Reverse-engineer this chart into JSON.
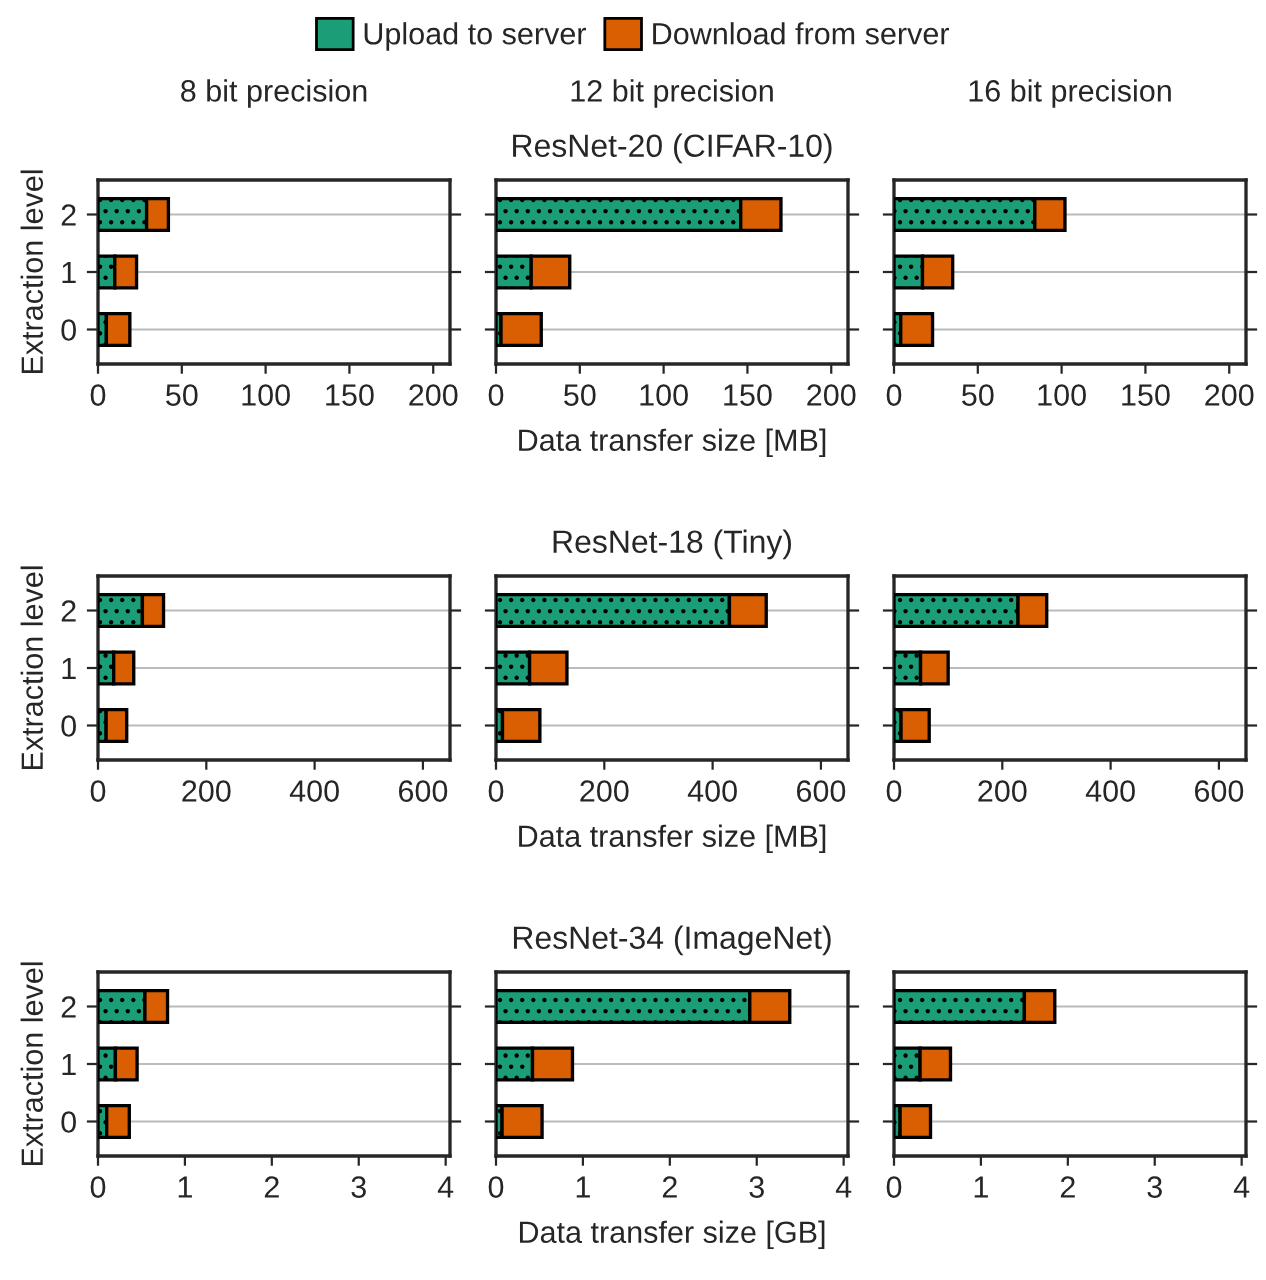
{
  "chart_data": [
    {
      "type": "bar",
      "orientation": "horizontal",
      "stacked": true,
      "subtitle": "8 bit precision",
      "ylabel": "Extraction level",
      "categories": [
        "2",
        "1",
        "0"
      ],
      "xlim": [
        0,
        210
      ],
      "xticks": [
        0,
        50,
        100,
        150,
        200
      ],
      "grid": "y",
      "legend": "top",
      "series": [
        {
          "name": "Upload to server",
          "color": "#1b9e77",
          "values": [
            29,
            10,
            5
          ]
        },
        {
          "name": "Download from server",
          "color": "#d95f02",
          "values": [
            13,
            13,
            14
          ]
        }
      ]
    },
    {
      "type": "bar",
      "orientation": "horizontal",
      "stacked": true,
      "subtitle": "12 bit precision",
      "title": "ResNet-20 (CIFAR-10)",
      "xlabel": "Data transfer size [MB]",
      "categories": [
        "2",
        "1",
        "0"
      ],
      "xlim": [
        0,
        210
      ],
      "xticks": [
        0,
        50,
        100,
        150,
        200
      ],
      "grid": "y",
      "tick_labels": "x",
      "series": [
        {
          "color": "#1b9e77",
          "values": [
            146,
            21,
            3
          ]
        },
        {
          "color": "#d95f02",
          "values": [
            24,
            23,
            24
          ]
        }
      ]
    },
    {
      "type": "bar",
      "orientation": "horizontal",
      "stacked": true,
      "subtitle": "16 bit precision",
      "categories": [
        "2",
        "1",
        "0"
      ],
      "xlim": [
        0,
        210
      ],
      "xticks": [
        0,
        50,
        100,
        150,
        200
      ],
      "grid": "y",
      "tick_labels": "x",
      "series": [
        {
          "color": "#1b9e77",
          "values": [
            84,
            17,
            4
          ]
        },
        {
          "color": "#d95f02",
          "values": [
            18,
            18,
            19
          ]
        }
      ]
    },
    {
      "type": "bar",
      "orientation": "horizontal",
      "stacked": true,
      "ylabel": "Extraction level",
      "categories": [
        "2",
        "1",
        "0"
      ],
      "xlim": [
        0,
        650
      ],
      "xticks": [
        0,
        200,
        400,
        600
      ],
      "grid": "y",
      "series": [
        {
          "color": "#1b9e77",
          "values": [
            82,
            29,
            15
          ]
        },
        {
          "color": "#d95f02",
          "values": [
            39,
            37,
            38
          ]
        }
      ]
    },
    {
      "type": "bar",
      "orientation": "horizontal",
      "stacked": true,
      "title": "ResNet-18 (Tiny)",
      "xlabel": "Data transfer size [MB]",
      "categories": [
        "2",
        "1",
        "0"
      ],
      "xlim": [
        0,
        650
      ],
      "xticks": [
        0,
        200,
        400,
        600
      ],
      "grid": "y",
      "tick_labels": "x",
      "series": [
        {
          "color": "#1b9e77",
          "values": [
            431,
            62,
            12
          ]
        },
        {
          "color": "#d95f02",
          "values": [
            68,
            69,
            69
          ]
        }
      ]
    },
    {
      "type": "bar",
      "orientation": "horizontal",
      "stacked": true,
      "categories": [
        "2",
        "1",
        "0"
      ],
      "xlim": [
        0,
        650
      ],
      "xticks": [
        0,
        200,
        400,
        600
      ],
      "grid": "y",
      "tick_labels": "x",
      "series": [
        {
          "color": "#1b9e77",
          "values": [
            229,
            49,
            13
          ]
        },
        {
          "color": "#d95f02",
          "values": [
            53,
            51,
            52
          ]
        }
      ]
    },
    {
      "type": "bar",
      "orientation": "horizontal",
      "stacked": true,
      "ylabel": "Extraction level",
      "categories": [
        "2",
        "1",
        "0"
      ],
      "xlim": [
        0,
        4.05
      ],
      "xticks": [
        0,
        1,
        2,
        3,
        4
      ],
      "grid": "y",
      "series": [
        {
          "color": "#1b9e77",
          "values": [
            0.54,
            0.2,
            0.1
          ]
        },
        {
          "color": "#d95f02",
          "values": [
            0.26,
            0.25,
            0.26
          ]
        }
      ]
    },
    {
      "type": "bar",
      "orientation": "horizontal",
      "stacked": true,
      "title": "ResNet-34 (ImageNet)",
      "xlabel": "Data transfer size [GB]",
      "categories": [
        "2",
        "1",
        "0"
      ],
      "xlim": [
        0,
        4.05
      ],
      "xticks": [
        0,
        1,
        2,
        3,
        4
      ],
      "grid": "y",
      "tick_labels": "x",
      "series": [
        {
          "color": "#1b9e77",
          "values": [
            2.92,
            0.42,
            0.07
          ]
        },
        {
          "color": "#d95f02",
          "values": [
            0.46,
            0.46,
            0.46
          ]
        }
      ]
    },
    {
      "type": "bar",
      "orientation": "horizontal",
      "stacked": true,
      "categories": [
        "2",
        "1",
        "0"
      ],
      "xlim": [
        0,
        4.05
      ],
      "xticks": [
        0,
        1,
        2,
        3,
        4
      ],
      "grid": "y",
      "tick_labels": "x",
      "series": [
        {
          "color": "#1b9e77",
          "values": [
            1.5,
            0.3,
            0.07
          ]
        },
        {
          "color": "#d95f02",
          "values": [
            0.35,
            0.35,
            0.35
          ]
        }
      ]
    }
  ]
}
